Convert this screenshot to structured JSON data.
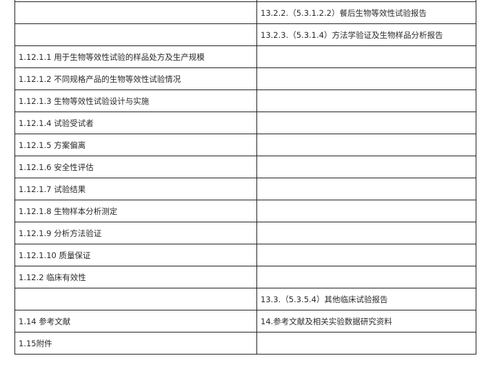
{
  "rows": [
    {
      "left": "",
      "right": ""
    },
    {
      "left": "",
      "right": "13.2.2.（5.3.1.2.2）餐后生物等效性试验报告"
    },
    {
      "left": "",
      "right": "13.2.3.（5.3.1.4）方法学验证及生物样品分析报告"
    },
    {
      "left": "1.12.1.1 用于生物等效性试验的样品处方及生产规模",
      "right": ""
    },
    {
      "left": "1.12.1.2 不同规格产品的生物等效性试验情况",
      "right": ""
    },
    {
      "left": "1.12.1.3 生物等效性试验设计与实施",
      "right": ""
    },
    {
      "left": "1.12.1.4 试验受试者",
      "right": ""
    },
    {
      "left": "1.12.1.5 方案偏离",
      "right": ""
    },
    {
      "left": "1.12.1.6 安全性评估",
      "right": ""
    },
    {
      "left": "1.12.1.7 试验结果",
      "right": ""
    },
    {
      "left": "1.12.1.8 生物样本分析测定",
      "right": ""
    },
    {
      "left": "1.12.1.9 分析方法验证",
      "right": ""
    },
    {
      "left": "1.12.1.10 质量保证",
      "right": ""
    },
    {
      "left": "1.12.2 临床有效性",
      "right": ""
    },
    {
      "left": "",
      "right": "13.3.（5.3.5.4）其他临床试验报告"
    },
    {
      "left": "1.14 参考文献",
      "right": "14.参考文献及相关实验数据研究资料"
    },
    {
      "left": "1.15附件",
      "right": ""
    }
  ]
}
